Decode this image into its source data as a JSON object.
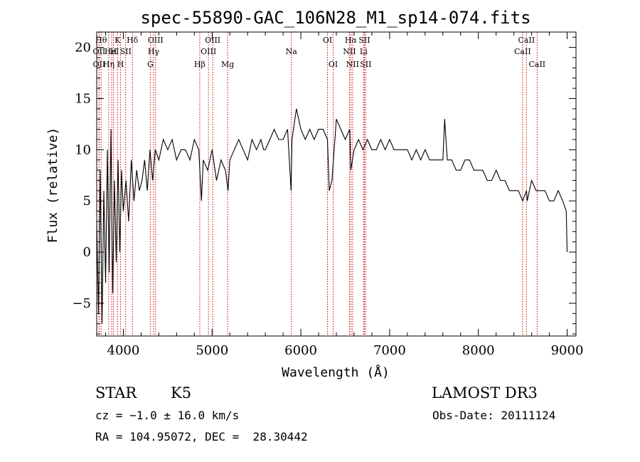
{
  "chart_data": {
    "type": "line",
    "title": "spec-55890-GAC_106N28_M1_sp14-074.fits",
    "xlabel": "Wavelength (Å)",
    "ylabel": "Flux (relative)",
    "xlim": [
      3700,
      9100
    ],
    "ylim": [
      -8.2,
      21.5
    ],
    "xticks": [
      "4000",
      "5000",
      "6000",
      "7000",
      "8000",
      "9000"
    ],
    "xtick_values": [
      4000,
      5000,
      6000,
      7000,
      8000,
      9000
    ],
    "yticks": [
      "−5",
      "0",
      "5",
      "10",
      "15",
      "20"
    ],
    "ytick_values": [
      -5,
      0,
      5,
      10,
      15,
      20
    ],
    "series": [
      {
        "x": [
          3700,
          3720,
          3740,
          3760,
          3780,
          3800,
          3820,
          3840,
          3860,
          3880,
          3900,
          3920,
          3940,
          3960,
          3980,
          4000,
          4030,
          4060,
          4090,
          4120,
          4150,
          4180,
          4210,
          4240,
          4270,
          4300,
          4330,
          4360,
          4400,
          4450,
          4500,
          4550,
          4600,
          4650,
          4700,
          4750,
          4800,
          4850,
          4880,
          4900,
          4950,
          5000,
          5050,
          5100,
          5150,
          5180,
          5200,
          5250,
          5300,
          5350,
          5400,
          5450,
          5500,
          5550,
          5580,
          5600,
          5650,
          5700,
          5750,
          5800,
          5850,
          5890,
          5900,
          5950,
          6000,
          6050,
          6100,
          6150,
          6200,
          6250,
          6300,
          6320,
          6350,
          6400,
          6450,
          6500,
          6550,
          6563,
          6600,
          6650,
          6700,
          6750,
          6800,
          6850,
          6900,
          6950,
          7000,
          7050,
          7100,
          7150,
          7200,
          7250,
          7300,
          7350,
          7400,
          7450,
          7500,
          7550,
          7600,
          7620,
          7650,
          7700,
          7750,
          7800,
          7850,
          7900,
          7950,
          8000,
          8050,
          8100,
          8150,
          8200,
          8250,
          8300,
          8350,
          8400,
          8450,
          8500,
          8542,
          8550,
          8600,
          8650,
          8700,
          8750,
          8800,
          8850,
          8900,
          8950,
          8990,
          9000
        ],
        "y": [
          3,
          -6,
          8,
          -7,
          6,
          -3,
          10,
          -2,
          12,
          -4,
          7,
          -1,
          9,
          0,
          8,
          4,
          7,
          3,
          9,
          5,
          8,
          6,
          7,
          9,
          6,
          10,
          7,
          10,
          9,
          11,
          10,
          11,
          9,
          10,
          10,
          9,
          11,
          10,
          5,
          9,
          8,
          10,
          7,
          9,
          8,
          6,
          9,
          10,
          11,
          10,
          9,
          11,
          10,
          11,
          10,
          10,
          11,
          12,
          11,
          11,
          12,
          6,
          11,
          14,
          12,
          11,
          12,
          11,
          12,
          12,
          11,
          6,
          7,
          13,
          12,
          11,
          12,
          8,
          10,
          11,
          10,
          11,
          10,
          10,
          11,
          10,
          11,
          10,
          10,
          10,
          10,
          9,
          10,
          9,
          10,
          9,
          9,
          9,
          9,
          13,
          9,
          9,
          8,
          8,
          9,
          9,
          8,
          8,
          8,
          7,
          7,
          8,
          7,
          7,
          6,
          6,
          6,
          5,
          6,
          5,
          7,
          6,
          6,
          6,
          5,
          5,
          6,
          5,
          4,
          0
        ]
      }
    ],
    "line_ids": [
      {
        "x": 3750,
        "label": "Hθ",
        "row": 0
      },
      {
        "x": 3727,
        "label": "OII",
        "row": 1
      },
      {
        "x": 3727,
        "label": "OII",
        "row": 2
      },
      {
        "x": 3835,
        "label": "Hη",
        "row": 2
      },
      {
        "x": 3869,
        "label": "HeI",
        "row": 1
      },
      {
        "x": 3889,
        "label": "H",
        "row": 1
      },
      {
        "x": 3934,
        "label": "K",
        "row": 0
      },
      {
        "x": 3969,
        "label": "H",
        "row": 2
      },
      {
        "x": 4026,
        "label": "SII",
        "row": 1
      },
      {
        "x": 4102,
        "label": "Hδ",
        "row": 0
      },
      {
        "x": 4304,
        "label": "G",
        "row": 2
      },
      {
        "x": 4341,
        "label": "Hγ",
        "row": 1
      },
      {
        "x": 4363,
        "label": "OIII",
        "row": 0
      },
      {
        "x": 4861,
        "label": "Hβ",
        "row": 2
      },
      {
        "x": 4959,
        "label": "OIII",
        "row": 1
      },
      {
        "x": 5007,
        "label": "OIII",
        "row": 0
      },
      {
        "x": 5175,
        "label": "Mg",
        "row": 2
      },
      {
        "x": 5893,
        "label": "Na",
        "row": 1
      },
      {
        "x": 6300,
        "label": "OI",
        "row": 0
      },
      {
        "x": 6364,
        "label": "OI",
        "row": 2
      },
      {
        "x": 6548,
        "label": "NII",
        "row": 1
      },
      {
        "x": 6563,
        "label": "Hα",
        "row": 0
      },
      {
        "x": 6583,
        "label": "NII",
        "row": 2
      },
      {
        "x": 6707,
        "label": "Li",
        "row": 1
      },
      {
        "x": 6716,
        "label": "SII",
        "row": 0
      },
      {
        "x": 6731,
        "label": "SII",
        "row": 2
      },
      {
        "x": 8498,
        "label": "CaII",
        "row": 1
      },
      {
        "x": 8542,
        "label": "CaII",
        "row": 0
      },
      {
        "x": 8662,
        "label": "CaII",
        "row": 2
      }
    ]
  },
  "footer": {
    "object_class": "STAR",
    "subclass": "K5",
    "survey": "LAMOST DR3",
    "cz": "cz = −1.0 ± 16.0 km/s",
    "obs_date": "Obs-Date: 20111124",
    "coords": "RA = 104.95072, DEC =  28.30442"
  },
  "colors": {
    "spectrum": "#000000",
    "line_markers": "#cc0000"
  }
}
